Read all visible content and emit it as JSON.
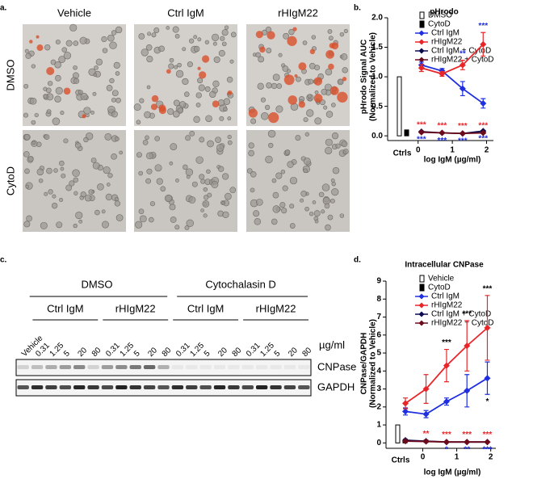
{
  "panel_labels": [
    "a.",
    "b.",
    "c.",
    "d."
  ],
  "panel_a": {
    "columns": [
      "Vehicle",
      "Ctrl IgM",
      "rHIgM22"
    ],
    "rows": [
      "DMSO",
      "CytoD"
    ]
  },
  "panel_c": {
    "groups": [
      {
        "name": "DMSO",
        "subgroups": [
          "Ctrl IgM",
          "rHIgM22"
        ]
      },
      {
        "name": "Cytochalasin D",
        "subgroups": [
          "Ctrl IgM",
          "rHIgM22"
        ]
      }
    ],
    "lanes": [
      "Vehicle",
      "0.31",
      "1.25",
      "5",
      "20",
      "80",
      "0.31",
      "1.25",
      "5",
      "20",
      "80",
      "0.31",
      "1.25",
      "5",
      "20",
      "80",
      "0.31",
      "1.25",
      "5",
      "20",
      "80"
    ],
    "unit": "µg/ml",
    "bands": [
      "CNPase",
      "GAPDH"
    ]
  },
  "chart_data": [
    {
      "type": "line",
      "title": "pHrodo",
      "ylabel": [
        "pHrodo Signal AUC",
        "(Normalized to Vehicle)"
      ],
      "xlabel": "log IgM (µg/ml)",
      "controls_label": "Ctrls",
      "controls": [
        {
          "name": "DMSO",
          "value": 1.0,
          "color": "#ffffff"
        },
        {
          "name": "CytoD",
          "value": 0.1,
          "color": "#000000"
        }
      ],
      "x": [
        0.097,
        0.7,
        1.3,
        1.9
      ],
      "xlim": [
        -0.3,
        2.2
      ],
      "xticks": [
        0,
        1,
        2
      ],
      "ylim": [
        -0.08,
        2.0
      ],
      "yticks": [
        {
          "value": 0,
          "label": "0.0"
        },
        {
          "value": 0.5,
          "label": "0.5"
        },
        {
          "value": 1,
          "label": "1.0"
        },
        {
          "value": 1.5,
          "label": "1.5"
        },
        {
          "value": 2,
          "label": "2.0"
        }
      ],
      "series": [
        {
          "name": "Ctrl IgM",
          "color": "#1f2fe0",
          "values": [
            1.2,
            1.1,
            0.8,
            0.55
          ],
          "errors": [
            0.05,
            0.04,
            0.12,
            0.08
          ]
        },
        {
          "name": "rHIgM22",
          "color": "#e8262a",
          "values": [
            1.15,
            1.05,
            1.2,
            1.55
          ],
          "errors": [
            0.06,
            0.04,
            0.08,
            0.2
          ],
          "labels": [
            null,
            null,
            "**",
            "***"
          ],
          "label_color": "#1f2fe0",
          "label_side": "above"
        },
        {
          "name": "Ctrl IgM + CytoD",
          "color": "#0a0a50",
          "values": [
            0.07,
            0.05,
            0.04,
            0.08
          ],
          "errors": [
            0.01,
            0.01,
            0.01,
            0.01
          ],
          "labels": [
            "***",
            "***",
            "***",
            "***"
          ],
          "label_color": "#1f2fe0",
          "label_side": "below"
        },
        {
          "name": "rHIgM22 + CytoD",
          "color": "#6b0a1a",
          "values": [
            0.06,
            0.05,
            0.04,
            0.05
          ],
          "errors": [
            0.01,
            0.01,
            0.01,
            0.01
          ],
          "labels": [
            "***",
            "***",
            "***",
            "***"
          ],
          "label_color": "#e8262a",
          "label_side": "above"
        }
      ]
    },
    {
      "type": "line",
      "title": "Intracellular CNPase",
      "ylabel": [
        "CNPase/GAPDH",
        "(Normalized to Vehicle)"
      ],
      "xlabel": "log IgM (µg/ml)",
      "controls_label": "Ctrls",
      "controls": [
        {
          "name": "Vehicle",
          "value": 1.0,
          "color": "#ffffff"
        },
        {
          "name": "CytoD",
          "value": 0.1,
          "color": "#000000"
        }
      ],
      "x": [
        -0.51,
        0.097,
        0.7,
        1.3,
        1.9
      ],
      "xlim": [
        -0.7,
        2.15
      ],
      "xticks": [
        0,
        1,
        2
      ],
      "ylim": [
        -0.3,
        9
      ],
      "yticks": [
        0,
        1,
        2,
        3,
        4,
        5,
        6,
        7,
        8,
        9
      ],
      "series": [
        {
          "name": "Ctrl IgM",
          "color": "#1f2fe0",
          "values": [
            1.75,
            1.6,
            2.3,
            2.9,
            3.6
          ],
          "errors": [
            0.2,
            0.2,
            0.2,
            0.9,
            0.9
          ],
          "labels": [
            null,
            null,
            null,
            null,
            "*"
          ],
          "label_color": "#000000",
          "label_side": "below"
        },
        {
          "name": "rHIgM22",
          "color": "#e8262a",
          "values": [
            2.2,
            3.0,
            4.3,
            5.4,
            6.4
          ],
          "errors": [
            0.3,
            0.8,
            0.9,
            1.4,
            1.8
          ],
          "labels": [
            null,
            null,
            "***",
            "***",
            "***"
          ],
          "label_color": "#000000",
          "label_side": "above"
        },
        {
          "name": "Ctrl IgM + CytoD",
          "color": "#0a0a50",
          "values": [
            0.15,
            0.1,
            0.05,
            0.05,
            0.05
          ],
          "errors": [
            0.05,
            0.05,
            0.03,
            0.03,
            0.03
          ],
          "labels": [
            null,
            null,
            "*",
            "**",
            "***"
          ],
          "label_color": "#1f2fe0",
          "label_side": "below"
        },
        {
          "name": "rHIgM22 + CytoD",
          "color": "#6b0a1a",
          "values": [
            0.1,
            0.08,
            0.05,
            0.05,
            0.05
          ],
          "errors": [
            0.05,
            0.05,
            0.03,
            0.03,
            0.03
          ],
          "labels": [
            null,
            "**",
            "***",
            "***",
            "***"
          ],
          "label_color": "#e8262a",
          "label_side": "above"
        }
      ]
    }
  ]
}
